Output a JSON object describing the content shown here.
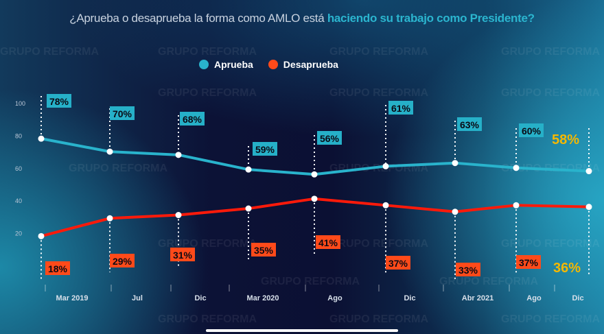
{
  "title": {
    "part1": "¿Aprueba o desaprueba la forma como AMLO está ",
    "part2": "haciendo su trabajo como Presidente?"
  },
  "watermark": "GRUPO REFORMA",
  "colors": {
    "aprueba": "#29b3cc",
    "desaprueba": "#ff1a0a",
    "aprueba_box": "#26b0c8",
    "desaprueba_box": "#ff4a1a",
    "latest": "#f5b800",
    "background": "#0b1033"
  },
  "chart_data": {
    "type": "line",
    "title": "¿Aprueba o desaprueba la forma como AMLO está haciendo su trabajo como Presidente?",
    "categories": [
      "Mar 2019",
      "Jul",
      "Dic",
      "Mar 2020",
      "Ago",
      "Dic",
      "Abr 2021",
      "Ago",
      "Dic"
    ],
    "series": [
      {
        "name": "Aprueba",
        "values": [
          78,
          70,
          68,
          59,
          56,
          61,
          63,
          60,
          58
        ],
        "labels": [
          "78%",
          "70%",
          "68%",
          "59%",
          "56%",
          "61%",
          "63%",
          "60%",
          "58%"
        ]
      },
      {
        "name": "Desaprueba",
        "values": [
          18,
          29,
          31,
          35,
          41,
          37,
          33,
          37,
          36
        ],
        "labels": [
          "18%",
          "29%",
          "31%",
          "35%",
          "41%",
          "37%",
          "33%",
          "37%",
          "36%"
        ]
      }
    ],
    "yticks": [
      "100",
      "80",
      "60",
      "40",
      "20"
    ],
    "ytick_values": [
      100,
      80,
      60,
      40,
      20
    ],
    "ylim": [
      0,
      100
    ],
    "grid": false,
    "legend_position": "top-center"
  }
}
